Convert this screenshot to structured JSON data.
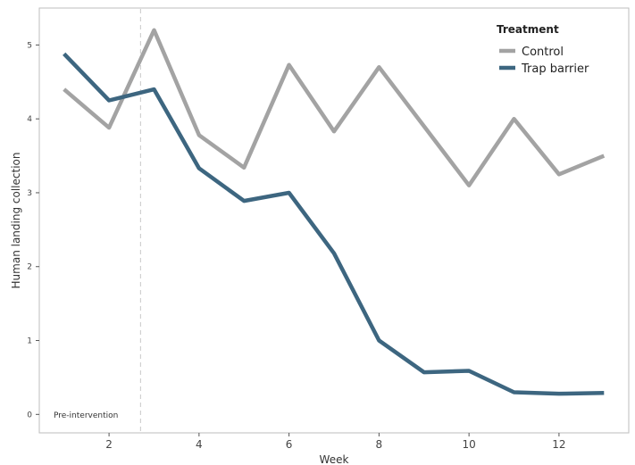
{
  "chart_data": {
    "type": "line",
    "title": "",
    "xlabel": "Week",
    "ylabel": "Human landing collection",
    "xlim": [
      0.45,
      13.55
    ],
    "ylim": [
      -0.25,
      5.5
    ],
    "x_ticks": [
      2,
      4,
      6,
      8,
      10,
      12
    ],
    "y_ticks": [
      0,
      1,
      2,
      3,
      4,
      5
    ],
    "grid": false,
    "legend": {
      "title": "Treatment",
      "placement": "top-right"
    },
    "series": [
      {
        "name": "Control",
        "color": "#a3a3a3",
        "x": [
          1,
          2,
          3,
          4,
          5,
          6,
          7,
          8,
          9,
          10,
          11,
          12,
          13
        ],
        "y": [
          4.4,
          3.88,
          5.2,
          3.78,
          3.34,
          4.73,
          3.83,
          4.7,
          3.9,
          3.1,
          4.0,
          3.25,
          3.5
        ]
      },
      {
        "name": "Trap barrier",
        "color": "#3d6680",
        "x": [
          1,
          2,
          3,
          4,
          5,
          6,
          7,
          8,
          9,
          10,
          11,
          12,
          13
        ],
        "y": [
          4.88,
          4.25,
          4.4,
          3.33,
          2.89,
          3.0,
          2.18,
          1.0,
          0.57,
          0.59,
          0.3,
          0.28,
          0.29
        ]
      }
    ],
    "reference_line": {
      "x": 2.7,
      "label": "Pre-intervention"
    }
  }
}
